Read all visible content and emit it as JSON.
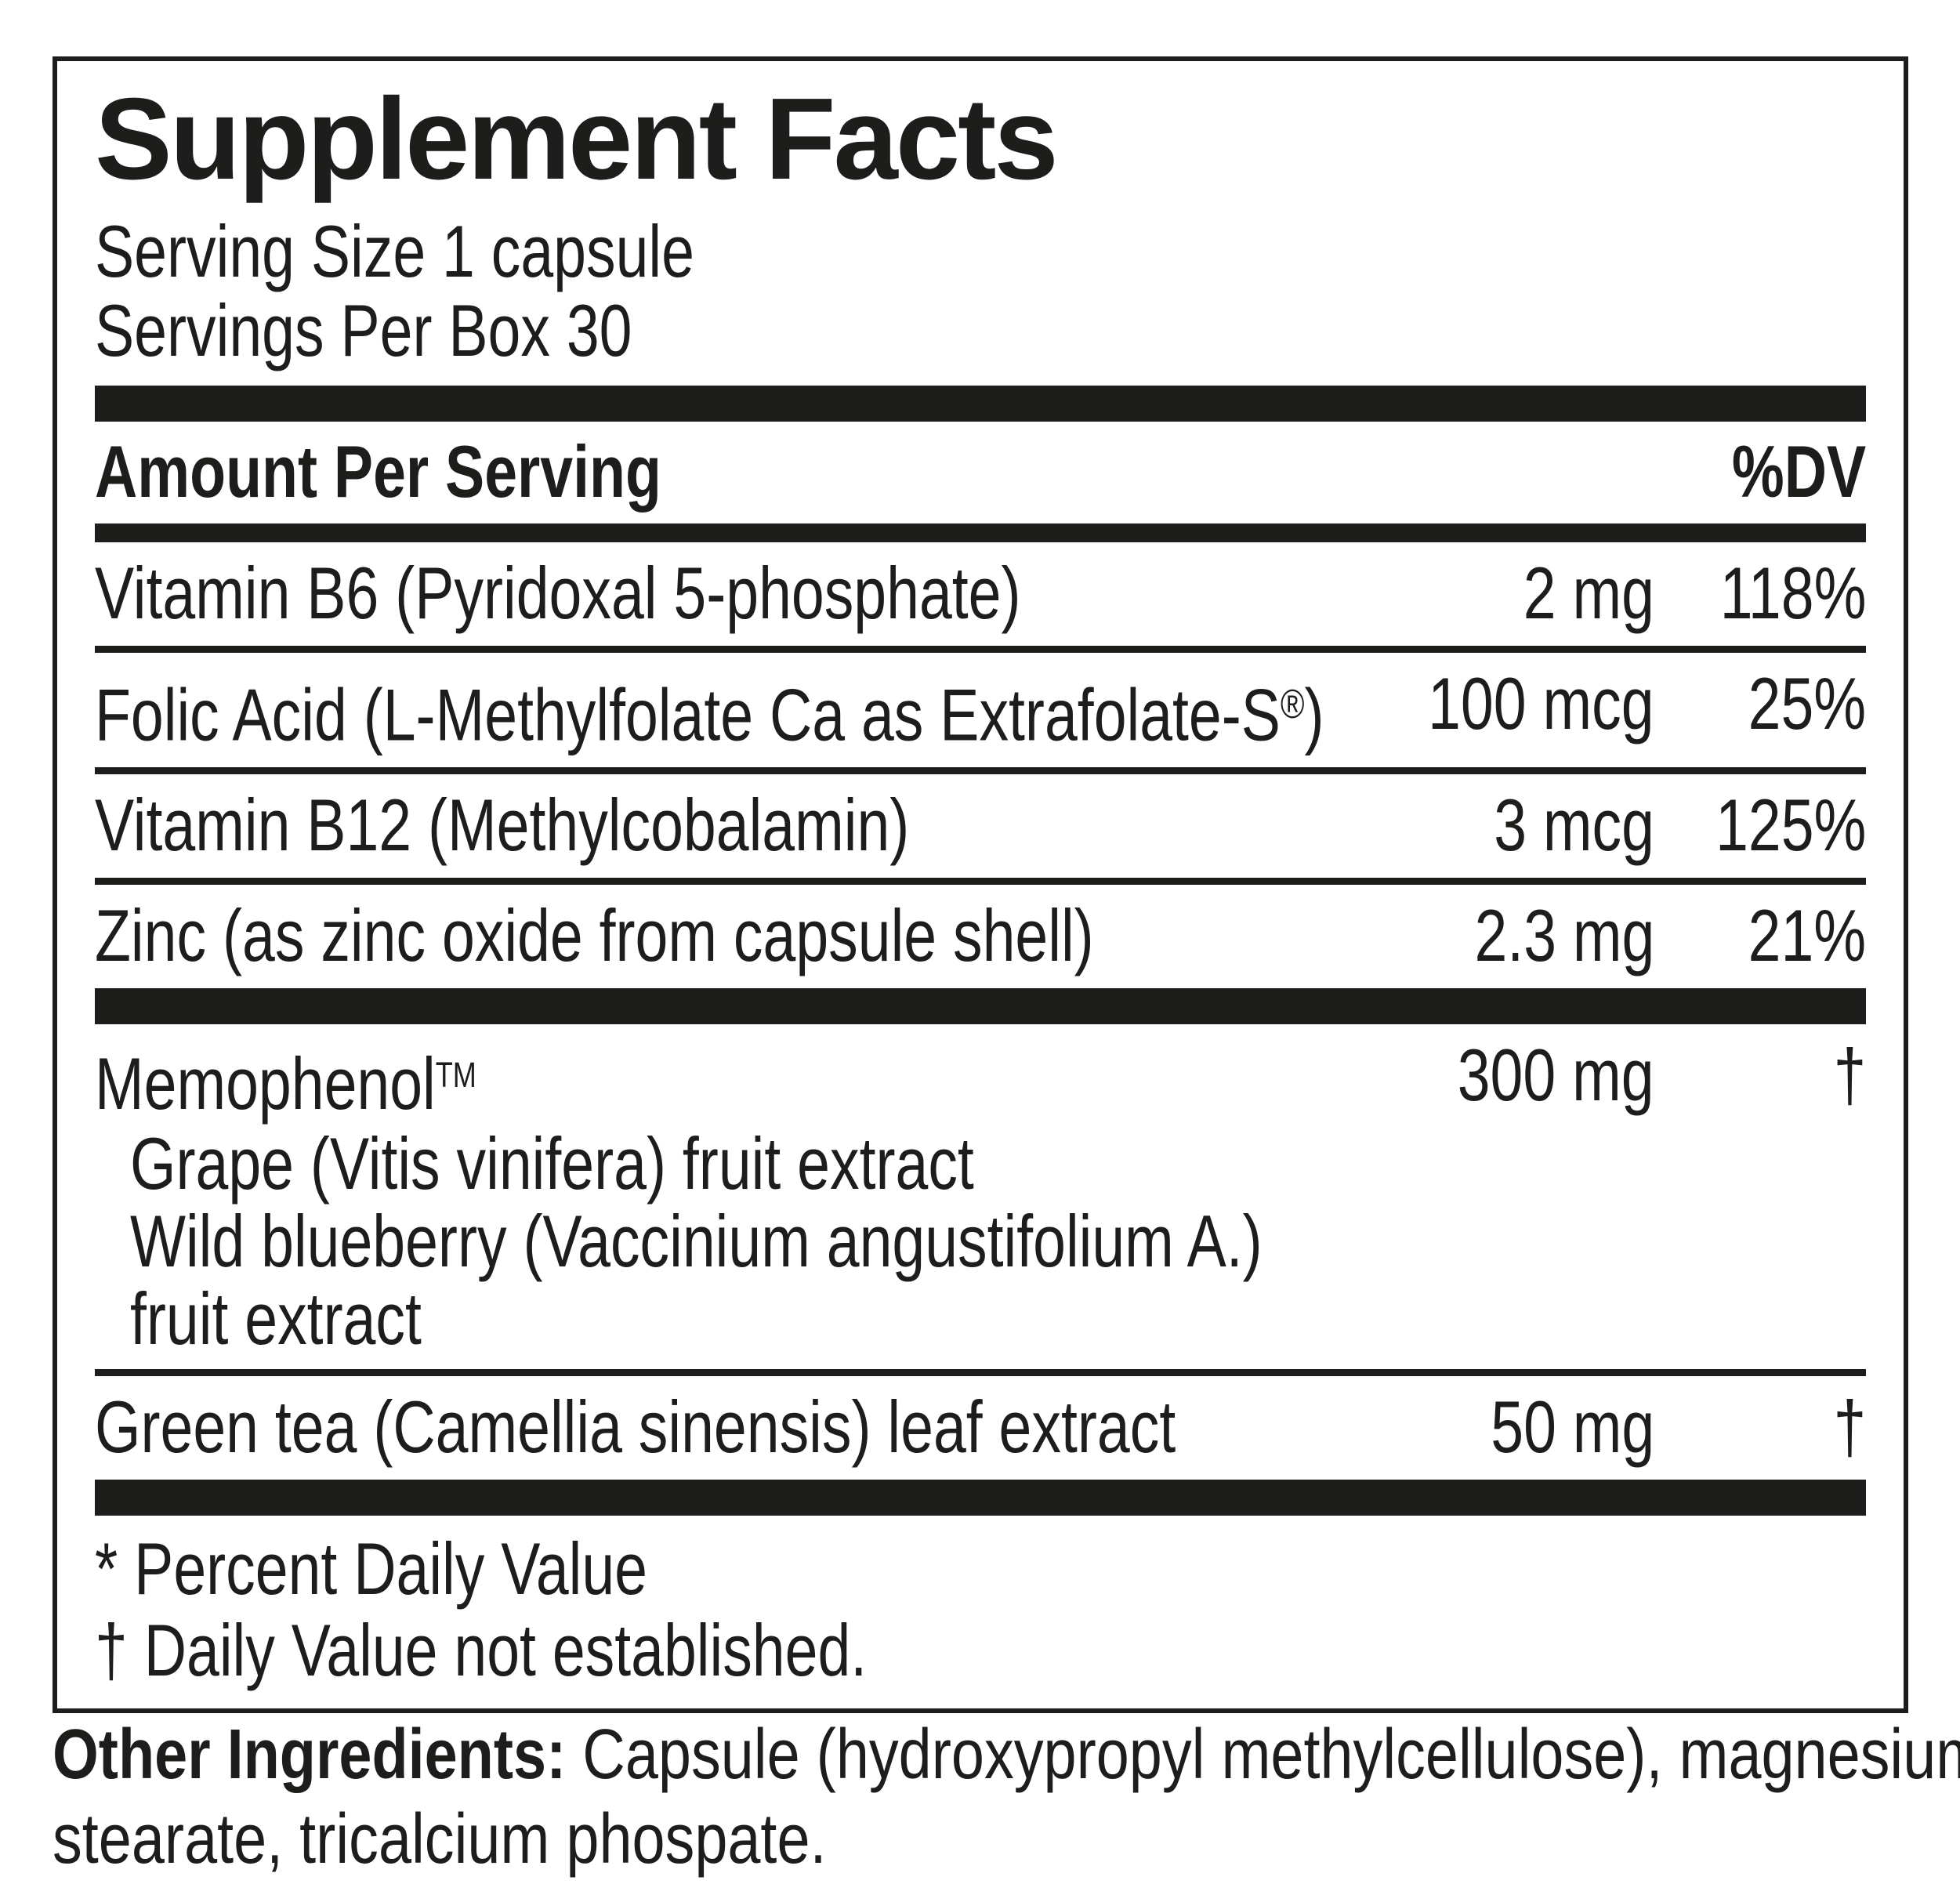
{
  "label": {
    "title": "Supplement Facts",
    "serving_size": "Serving Size 1 capsule",
    "servings_per_box": "Servings Per Box 30",
    "header": {
      "amount_per_serving": "Amount Per Serving",
      "dv": "%DV"
    },
    "rows": [
      {
        "name": "Vitamin B6 (Pyridoxal 5-phosphate)",
        "amount": "2 mg",
        "dv": "118%"
      },
      {
        "name": "Folic Acid (L-Methylfolate Ca as Extrafolate-S",
        "reg": "®",
        "name_close": ")",
        "amount": "100 mcg",
        "dv": "25%"
      },
      {
        "name": "Vitamin B12 (Methylcobalamin)",
        "amount": "3 mcg",
        "dv": "125%"
      },
      {
        "name": "Zinc (as zinc oxide from capsule shell)",
        "amount": "2.3 mg",
        "dv": "21%"
      }
    ],
    "proprietary": {
      "name": "Memophenol",
      "tm": "TM",
      "amount": "300 mg",
      "dv": "†",
      "sub_lines": [
        "Grape (Vitis vinifera) fruit extract",
        "Wild blueberry (Vaccinium angustifolium A.)",
        "fruit extract"
      ]
    },
    "extra_row": {
      "name": "Green tea (Camellia sinensis) leaf extract",
      "amount": "50 mg",
      "dv": "†"
    },
    "footnotes": [
      "* Percent Daily Value",
      "† Daily Value not established."
    ]
  },
  "other_ingredients": {
    "label": "Other Ingredients:",
    "line1": "Capsule (hydroxypropyl methylcellulose), magnesium",
    "line2": "stearate, tricalcium phospate."
  },
  "colors": {
    "ink": "#1d1d1b",
    "background": "#ffffff"
  }
}
